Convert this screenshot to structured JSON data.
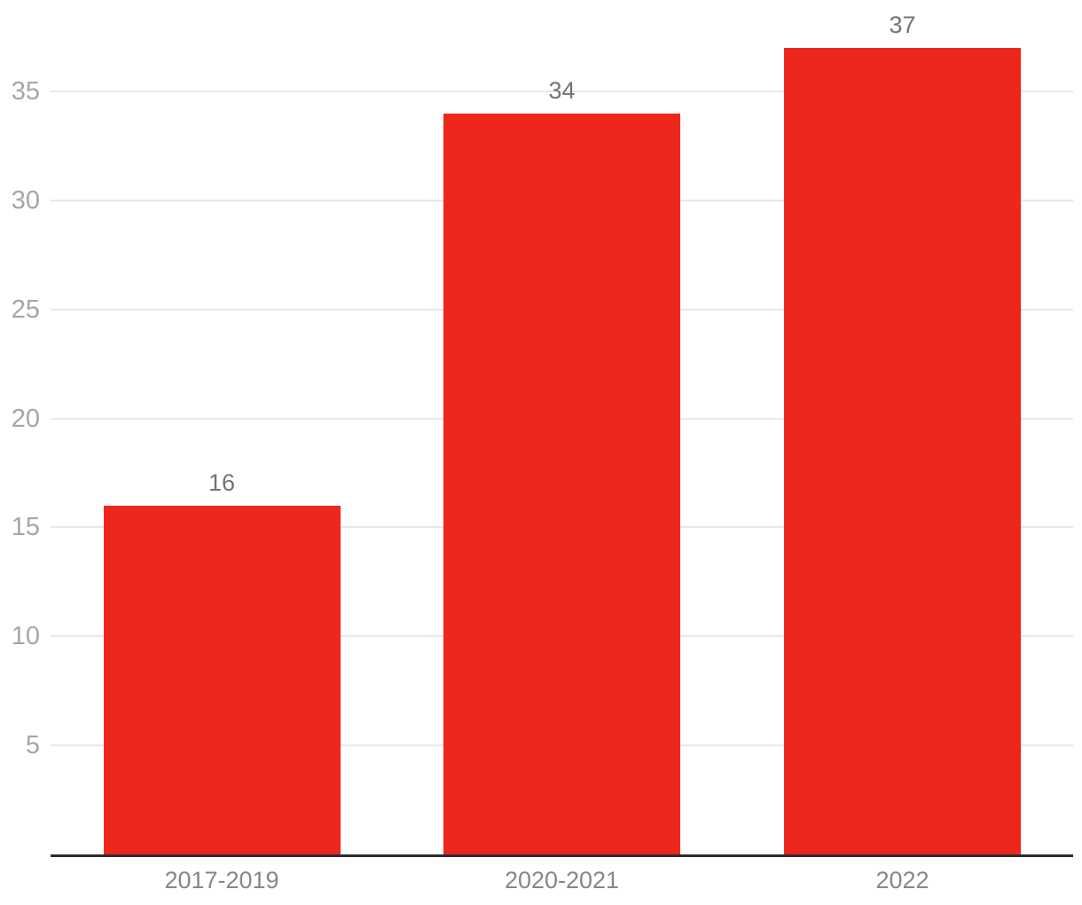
{
  "chart_data": {
    "type": "bar",
    "title": "",
    "xlabel": "",
    "ylabel": "",
    "categories": [
      "2017-2019",
      "2020-2021",
      "2022"
    ],
    "values": [
      16,
      34,
      37
    ],
    "value_labels": [
      "16",
      "34",
      "37"
    ],
    "yticks": [
      5,
      10,
      15,
      20,
      25,
      30,
      35
    ],
    "ylim": [
      0,
      37
    ],
    "grid": "horizontal",
    "legend": "none",
    "colors": {
      "bar": "#ee271d",
      "gridline": "#e8e8e8",
      "axis_line": "#2d2d2d",
      "y_tick_label": "#a6a6a6",
      "category_label": "#878787",
      "value_label": "#737373",
      "background": "#ffffff"
    }
  }
}
